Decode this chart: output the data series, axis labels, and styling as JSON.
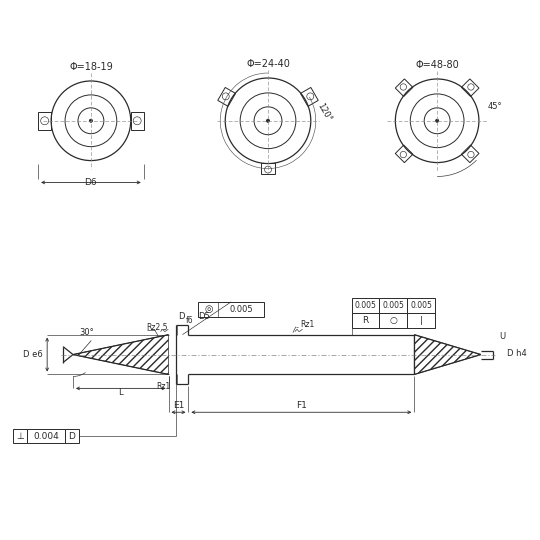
{
  "bg_color": "#ffffff",
  "line_color": "#2a2a2a",
  "fig_width": 5.4,
  "fig_height": 5.4,
  "dpi": 100,
  "labels": {
    "phi1": "Φ=18-19",
    "phi2": "Φ=24-40",
    "phi3": "Φ=48-80",
    "D6": "D6",
    "angle120": "120°",
    "angle45": "45°",
    "Df6": "f6",
    "D": "D",
    "D5": "D5",
    "De6": "D e6",
    "L": "L",
    "Rz25": "Rz2.5",
    "Rz1a": "Rz1",
    "Rz1b": "Rz1",
    "D_h4": "D h4",
    "U": "U",
    "E1": "E1",
    "F1": "F1",
    "ang30": "30°"
  }
}
